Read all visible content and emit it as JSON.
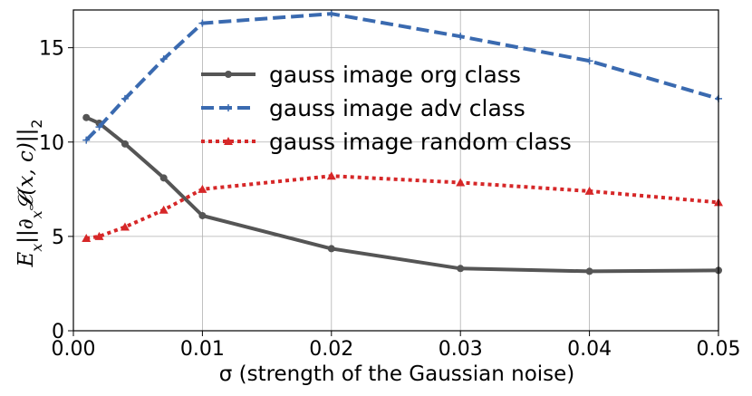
{
  "chart_data": {
    "type": "line",
    "xlabel": "σ (strength of the Gaussian noise)",
    "ylabel": "E_x||∂_x𝓛(x, c)||_2",
    "ylabel_parts": {
      "e": "E",
      "e_sub": "x",
      "bars_open": "||",
      "partial": "∂",
      "partial_sub": "x",
      "loss": "𝓛",
      "args": "(x, c)",
      "bars_close": "||",
      "norm_sub": "2"
    },
    "xlim": [
      0.0,
      0.05
    ],
    "ylim": [
      0,
      17
    ],
    "xticks": [
      "0.00",
      "0.01",
      "0.02",
      "0.03",
      "0.04",
      "0.05"
    ],
    "yticks": [
      "0",
      "5",
      "10",
      "15"
    ],
    "grid": true,
    "legend_position": "upper-center",
    "series": [
      {
        "name": "gauss image org class",
        "color": "#555555",
        "style": "solid",
        "marker": "circle",
        "x": [
          0.001,
          0.002,
          0.004,
          0.007,
          0.01,
          0.02,
          0.03,
          0.04,
          0.05
        ],
        "y": [
          11.3,
          11.0,
          9.9,
          8.1,
          6.1,
          4.35,
          3.3,
          3.15,
          3.2
        ]
      },
      {
        "name": "gauss image adv class",
        "color": "#3a6ab0",
        "style": "dashed",
        "marker": "plus",
        "x": [
          0.001,
          0.002,
          0.004,
          0.007,
          0.01,
          0.02,
          0.03,
          0.04,
          0.05
        ],
        "y": [
          10.1,
          10.8,
          12.3,
          14.4,
          16.3,
          16.8,
          15.6,
          14.3,
          12.3
        ]
      },
      {
        "name": "gauss image random class",
        "color": "#d62728",
        "style": "dotted",
        "marker": "triangle",
        "x": [
          0.001,
          0.002,
          0.004,
          0.007,
          0.01,
          0.02,
          0.03,
          0.04,
          0.05
        ],
        "y": [
          4.9,
          5.0,
          5.5,
          6.4,
          7.5,
          8.2,
          7.85,
          7.4,
          6.8
        ]
      }
    ]
  }
}
